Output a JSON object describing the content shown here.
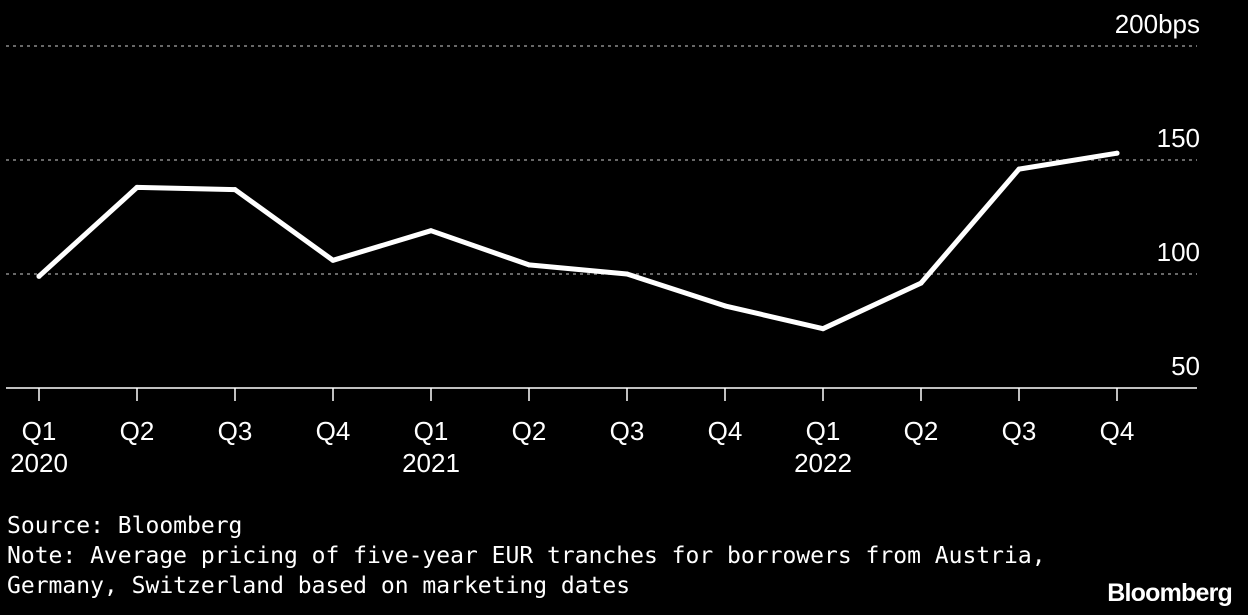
{
  "chart_data": {
    "type": "line",
    "x": [
      "Q1 2020",
      "Q2 2020",
      "Q3 2020",
      "Q4 2020",
      "Q1 2021",
      "Q2 2021",
      "Q3 2021",
      "Q4 2021",
      "Q1 2022",
      "Q2 2022",
      "Q3 2022",
      "Q4 2022"
    ],
    "x_tick_labels": [
      {
        "quarter": "Q1",
        "year": "2020"
      },
      {
        "quarter": "Q2",
        "year": ""
      },
      {
        "quarter": "Q3",
        "year": ""
      },
      {
        "quarter": "Q4",
        "year": ""
      },
      {
        "quarter": "Q1",
        "year": "2021"
      },
      {
        "quarter": "Q2",
        "year": ""
      },
      {
        "quarter": "Q3",
        "year": ""
      },
      {
        "quarter": "Q4",
        "year": ""
      },
      {
        "quarter": "Q1",
        "year": "2022"
      },
      {
        "quarter": "Q2",
        "year": ""
      },
      {
        "quarter": "Q3",
        "year": ""
      },
      {
        "quarter": "Q4",
        "year": ""
      }
    ],
    "series": [
      {
        "values": [
          99,
          138,
          137,
          106,
          119,
          104,
          100,
          86,
          76,
          96,
          146,
          153
        ],
        "color": "#ffffff"
      }
    ],
    "y_ticks": [
      {
        "value": 200,
        "label": "200bps"
      },
      {
        "value": 150,
        "label": "150"
      },
      {
        "value": 100,
        "label": "100"
      },
      {
        "value": 50,
        "label": "50"
      }
    ],
    "ylim": [
      50,
      200
    ],
    "grid": true,
    "y_axis_side": "right"
  },
  "footer": {
    "source": "Source: Bloomberg",
    "note_line1": "Note: Average pricing of five-year EUR tranches for borrowers from Austria,",
    "note_line2": "Germany, Switzerland based on marketing dates"
  },
  "brand": "Bloomberg",
  "colors": {
    "background": "#000000",
    "line": "#ffffff",
    "grid": "#8a8a8a",
    "text": "#ffffff"
  }
}
